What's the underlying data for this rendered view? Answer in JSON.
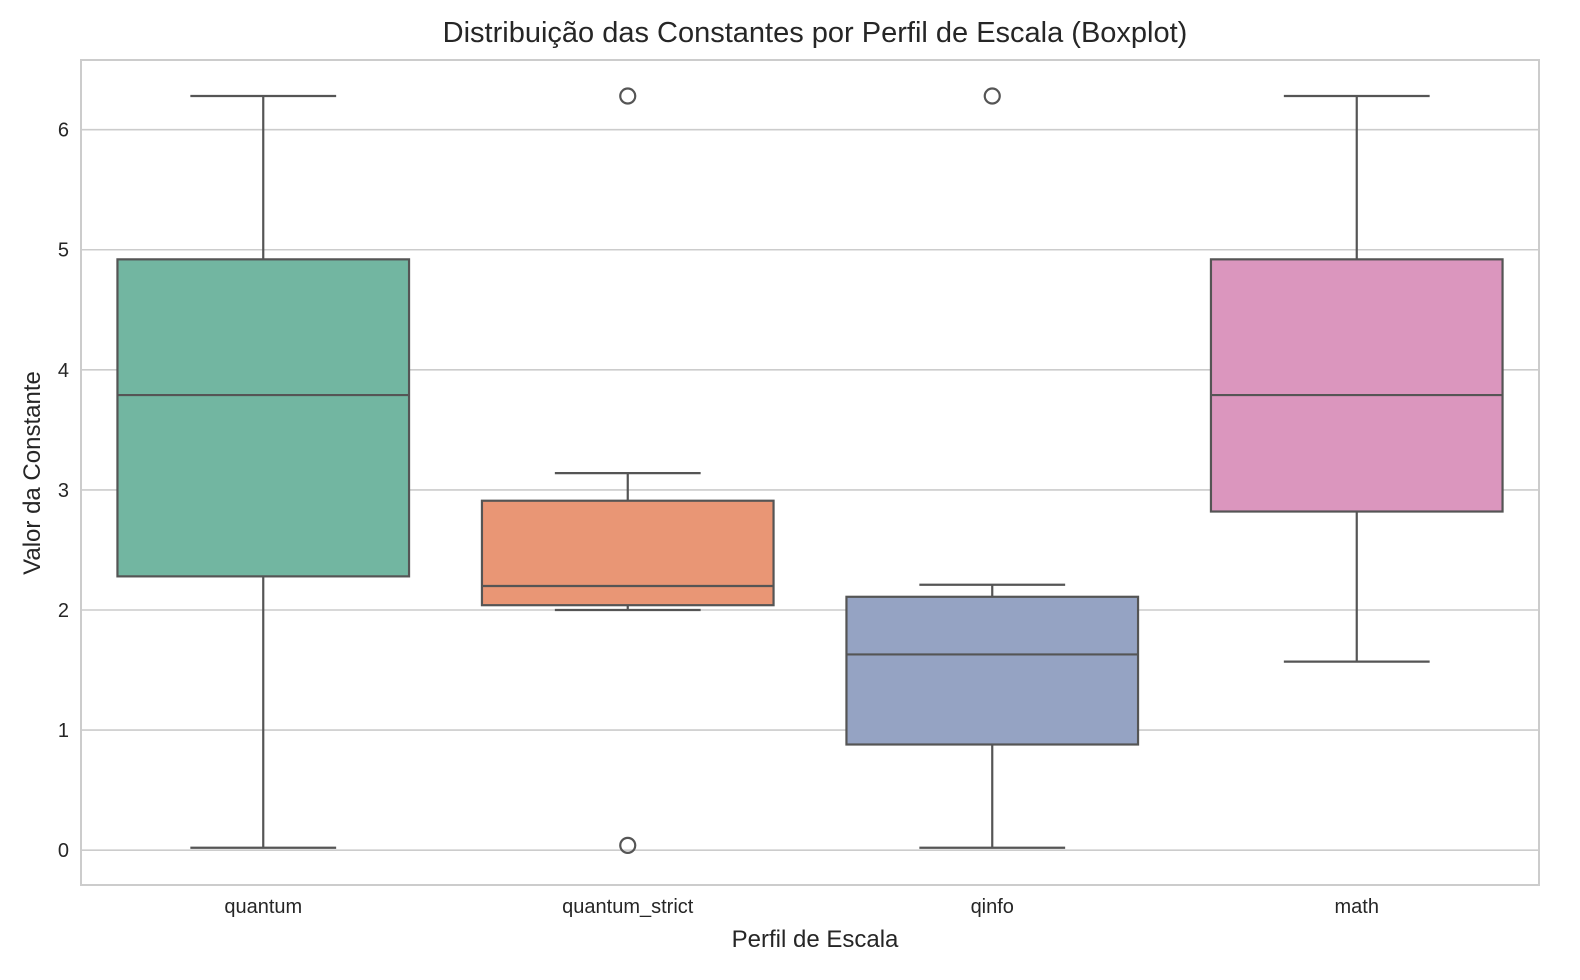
{
  "chart_data": {
    "type": "box",
    "title": "Distribuição das Constantes por Perfil de Escala (Boxplot)",
    "xlabel": "Perfil de Escala",
    "ylabel": "Valor da Constante",
    "ylim": [
      -0.29,
      6.58
    ],
    "yticks": [
      0,
      1,
      2,
      3,
      4,
      5,
      6
    ],
    "grid": "horizontal",
    "categories": [
      "quantum",
      "quantum_strict",
      "qinfo",
      "math"
    ],
    "boxes": [
      {
        "category": "quantum",
        "color": "#72b6a1",
        "whisker_low": 0.02,
        "q1": 2.28,
        "median": 3.79,
        "q3": 4.92,
        "whisker_high": 6.28,
        "outliers": []
      },
      {
        "category": "quantum_strict",
        "color": "#e99675",
        "whisker_low": 2.0,
        "q1": 2.04,
        "median": 2.2,
        "q3": 2.91,
        "whisker_high": 3.14,
        "outliers": [
          0.04,
          6.28
        ]
      },
      {
        "category": "qinfo",
        "color": "#95a3c3",
        "whisker_low": 0.02,
        "q1": 0.88,
        "median": 1.63,
        "q3": 2.11,
        "whisker_high": 2.21,
        "outliers": [
          6.28
        ]
      },
      {
        "category": "math",
        "color": "#db96be",
        "whisker_low": 1.57,
        "q1": 2.82,
        "median": 3.79,
        "q3": 4.92,
        "whisker_high": 6.28,
        "outliers": []
      }
    ],
    "line_color": "#555555",
    "grid_color": "#cccccc",
    "frame_color": "#cccccc"
  }
}
